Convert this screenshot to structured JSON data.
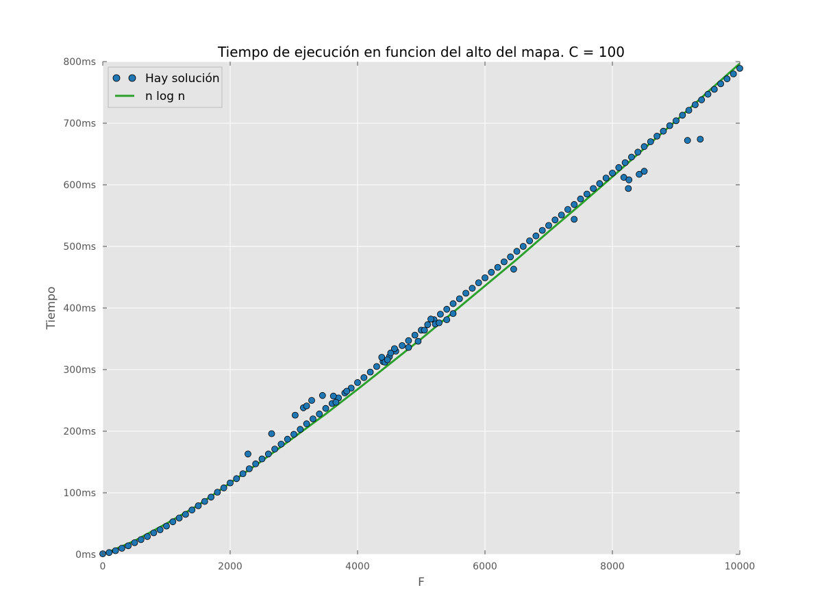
{
  "chart_data": {
    "type": "scatter",
    "title": "Tiempo de ejecución en funcion del alto del mapa. C = 100",
    "xlabel": "F",
    "ylabel": "Tiempo",
    "xlim": [
      0,
      10000
    ],
    "ylim": [
      0,
      800
    ],
    "x_ticks": [
      0,
      2000,
      4000,
      6000,
      8000,
      10000
    ],
    "x_tick_labels": [
      "0",
      "2000",
      "4000",
      "6000",
      "8000",
      "10000"
    ],
    "y_ticks": [
      0,
      100,
      200,
      300,
      400,
      500,
      600,
      700,
      800
    ],
    "y_tick_labels": [
      "0ms",
      "100ms",
      "200ms",
      "300ms",
      "400ms",
      "500ms",
      "600ms",
      "700ms",
      "800ms"
    ],
    "grid": true,
    "legend_position": "top-left",
    "background": "#e5e5e5",
    "series": [
      {
        "name": "Hay solución",
        "kind": "scatter",
        "color": "#1f77b4",
        "points": [
          [
            0,
            1
          ],
          [
            100,
            3
          ],
          [
            200,
            6
          ],
          [
            300,
            10
          ],
          [
            400,
            14
          ],
          [
            500,
            19
          ],
          [
            600,
            24
          ],
          [
            700,
            29
          ],
          [
            800,
            35
          ],
          [
            900,
            40
          ],
          [
            1000,
            46
          ],
          [
            1100,
            53
          ],
          [
            1200,
            59
          ],
          [
            1300,
            65
          ],
          [
            1400,
            72
          ],
          [
            1500,
            79
          ],
          [
            1600,
            86
          ],
          [
            1700,
            93
          ],
          [
            1800,
            101
          ],
          [
            1900,
            108
          ],
          [
            2000,
            116
          ],
          [
            2100,
            123
          ],
          [
            2200,
            131
          ],
          [
            2300,
            139
          ],
          [
            2400,
            147
          ],
          [
            2500,
            155
          ],
          [
            2600,
            163
          ],
          [
            2700,
            171
          ],
          [
            2800,
            179
          ],
          [
            2900,
            187
          ],
          [
            3000,
            195
          ],
          [
            3100,
            203
          ],
          [
            3200,
            212
          ],
          [
            3300,
            220
          ],
          [
            3400,
            228
          ],
          [
            3500,
            237
          ],
          [
            3600,
            245
          ],
          [
            3700,
            254
          ],
          [
            3800,
            262
          ],
          [
            3900,
            270
          ],
          [
            4000,
            279
          ],
          [
            4100,
            287
          ],
          [
            4200,
            296
          ],
          [
            4300,
            305
          ],
          [
            4400,
            313
          ],
          [
            4500,
            321
          ],
          [
            4600,
            330
          ],
          [
            4700,
            339
          ],
          [
            4800,
            347
          ],
          [
            4900,
            356
          ],
          [
            5000,
            364
          ],
          [
            5100,
            373
          ],
          [
            5200,
            381
          ],
          [
            5300,
            390
          ],
          [
            5400,
            398
          ],
          [
            5500,
            407
          ],
          [
            5600,
            415
          ],
          [
            5700,
            424
          ],
          [
            5800,
            432
          ],
          [
            5900,
            441
          ],
          [
            6000,
            449
          ],
          [
            6100,
            458
          ],
          [
            6200,
            466
          ],
          [
            6300,
            475
          ],
          [
            6400,
            483
          ],
          [
            6500,
            492
          ],
          [
            6600,
            500
          ],
          [
            6700,
            509
          ],
          [
            6800,
            517
          ],
          [
            6900,
            526
          ],
          [
            7000,
            534
          ],
          [
            7100,
            543
          ],
          [
            7200,
            551
          ],
          [
            7300,
            560
          ],
          [
            7400,
            568
          ],
          [
            7500,
            577
          ],
          [
            7600,
            585
          ],
          [
            7700,
            594
          ],
          [
            7800,
            602
          ],
          [
            7900,
            611
          ],
          [
            8000,
            619
          ],
          [
            8100,
            628
          ],
          [
            8200,
            636
          ],
          [
            8300,
            645
          ],
          [
            8400,
            653
          ],
          [
            8500,
            662
          ],
          [
            8600,
            670
          ],
          [
            8700,
            679
          ],
          [
            8800,
            687
          ],
          [
            8900,
            696
          ],
          [
            9000,
            704
          ],
          [
            9100,
            713
          ],
          [
            9200,
            721
          ],
          [
            9300,
            730
          ],
          [
            9400,
            738
          ],
          [
            9500,
            747
          ],
          [
            9600,
            755
          ],
          [
            9700,
            764
          ],
          [
            9800,
            772
          ],
          [
            9900,
            780
          ],
          [
            10000,
            789
          ],
          [
            2280,
            163
          ],
          [
            2650,
            196
          ],
          [
            3020,
            226
          ],
          [
            3150,
            238
          ],
          [
            3200,
            241
          ],
          [
            3280,
            250
          ],
          [
            3450,
            258
          ],
          [
            3620,
            257
          ],
          [
            3660,
            247
          ],
          [
            3830,
            265
          ],
          [
            4380,
            320
          ],
          [
            4430,
            312
          ],
          [
            4470,
            316
          ],
          [
            4520,
            327
          ],
          [
            4580,
            334
          ],
          [
            4800,
            336
          ],
          [
            4950,
            346
          ],
          [
            5050,
            364
          ],
          [
            5150,
            382
          ],
          [
            5220,
            374
          ],
          [
            5280,
            376
          ],
          [
            5400,
            381
          ],
          [
            5500,
            391
          ],
          [
            6450,
            463
          ],
          [
            7400,
            544
          ],
          [
            8180,
            612
          ],
          [
            8260,
            608
          ],
          [
            8250,
            594
          ],
          [
            8420,
            617
          ],
          [
            8500,
            622
          ],
          [
            9180,
            672
          ],
          [
            9380,
            674
          ]
        ]
      },
      {
        "name": "n log n",
        "kind": "line",
        "color": "#2ca02c",
        "points": [
          [
            0,
            0
          ],
          [
            500,
            22
          ],
          [
            1000,
            50
          ],
          [
            1500,
            80
          ],
          [
            2000,
            116
          ],
          [
            2500,
            152
          ],
          [
            3000,
            190
          ],
          [
            3500,
            228
          ],
          [
            4000,
            268
          ],
          [
            4500,
            309
          ],
          [
            5000,
            350
          ],
          [
            5500,
            393
          ],
          [
            6000,
            436
          ],
          [
            6500,
            479
          ],
          [
            7000,
            524
          ],
          [
            7500,
            568
          ],
          [
            8000,
            613
          ],
          [
            8500,
            659
          ],
          [
            9000,
            704
          ],
          [
            9500,
            751
          ],
          [
            10000,
            797
          ]
        ]
      }
    ]
  }
}
